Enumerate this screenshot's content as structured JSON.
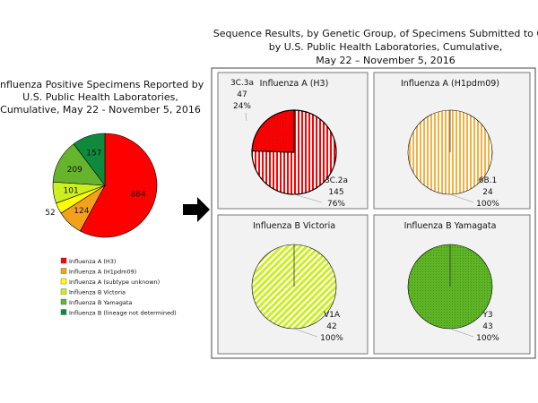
{
  "left_chart_title": [
    "Influenza Positive Specimens Reported by",
    "U.S. Public Health Laboratories,",
    "Cumulative, May 22 - November 5, 2016"
  ],
  "right_chart_title": [
    "Sequence Results, by Genetic Group, of Specimens Submitted to CDC",
    "by U.S. Public Health Laboratories, Cumulative,",
    "May 22 – November 5, 2016"
  ],
  "chart_data": [
    {
      "type": "pie",
      "title": "Influenza Positive Specimens Reported by U.S. Public Health Laboratories, Cumulative, May 22 - November 5, 2016",
      "legend_position": "bottom",
      "slices": [
        {
          "label": "Influenza A (H3)",
          "value": 884,
          "color": "#ff0000"
        },
        {
          "label": "Influenza A (H1pdm09)",
          "value": 124,
          "color": "#f5a01a"
        },
        {
          "label": "Influenza A (subtype unknown)",
          "value": 52,
          "color": "#ffff00"
        },
        {
          "label": "Influenza B Victoria",
          "value": 101,
          "color": "#ccee22"
        },
        {
          "label": "Influenza B Yamagata",
          "value": 209,
          "color": "#66b32e"
        },
        {
          "label": "Influenza B (lineage not determined)",
          "value": 157,
          "color": "#0f8a3c"
        }
      ]
    },
    {
      "type": "pie",
      "title": "Influenza A (H3)",
      "slices": [
        {
          "label": "3C.2a",
          "value": 145,
          "percent": "76%",
          "color": "#ff0000",
          "pattern": "vstripe"
        },
        {
          "label": "3C.3a",
          "value": 47,
          "percent": "24%",
          "color": "#ff0000",
          "pattern": "dots"
        }
      ]
    },
    {
      "type": "pie",
      "title": "Influenza A (H1pdm09)",
      "slices": [
        {
          "label": "6B.1",
          "value": 24,
          "percent": "100%",
          "color": "#f5b041",
          "pattern": "vstripe"
        }
      ]
    },
    {
      "type": "pie",
      "title": "Influenza B Victoria",
      "slices": [
        {
          "label": "V1A",
          "value": 42,
          "percent": "100%",
          "color": "#ccee22",
          "pattern": "dstripe"
        }
      ]
    },
    {
      "type": "pie",
      "title": "Influenza B Yamagata",
      "slices": [
        {
          "label": "Y3",
          "value": 43,
          "percent": "100%",
          "color": "#5fb526",
          "pattern": "dots"
        }
      ]
    }
  ]
}
